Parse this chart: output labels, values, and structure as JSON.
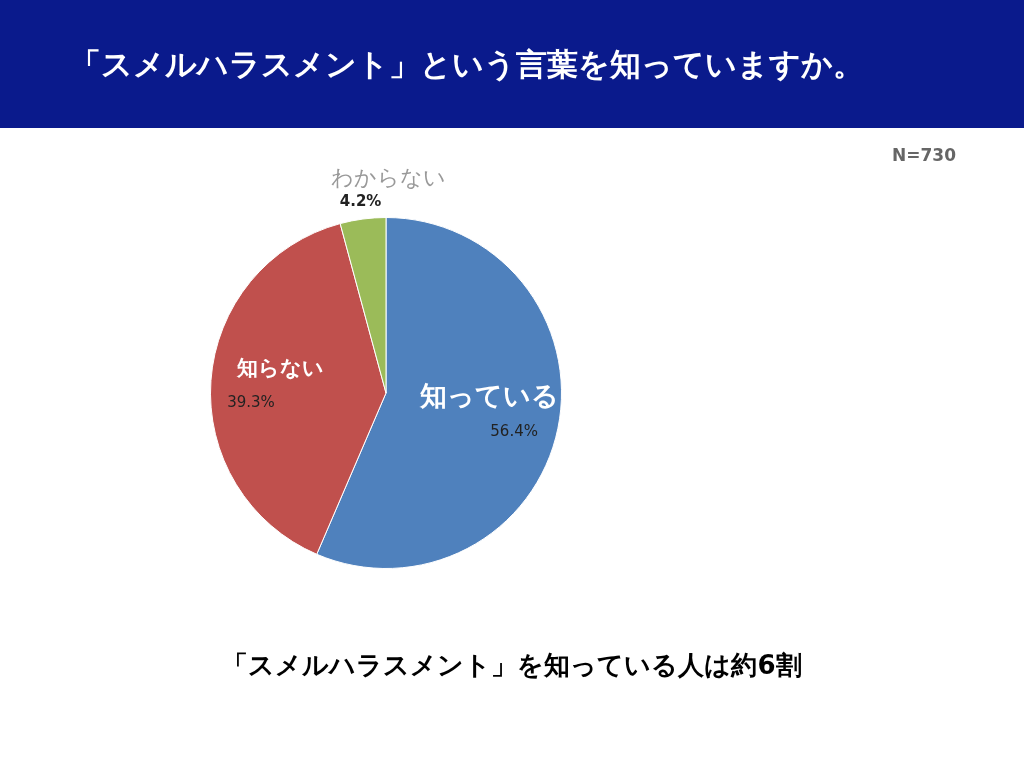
{
  "chart_data": {
    "type": "pie",
    "title": "「スメルハラスメント」という言葉を知っていますか。",
    "categories": [
      "知っている",
      "知らない",
      "わからない"
    ],
    "values": [
      56.4,
      39.3,
      4.2
    ],
    "value_labels": [
      "56.4%",
      "39.3%",
      "4.2%"
    ],
    "colors": [
      "#4f81bd",
      "#c0504d",
      "#9bbb59"
    ],
    "annotations": [
      "N=730",
      "「スメルハラスメント」を知っている人は約6割"
    ]
  }
}
